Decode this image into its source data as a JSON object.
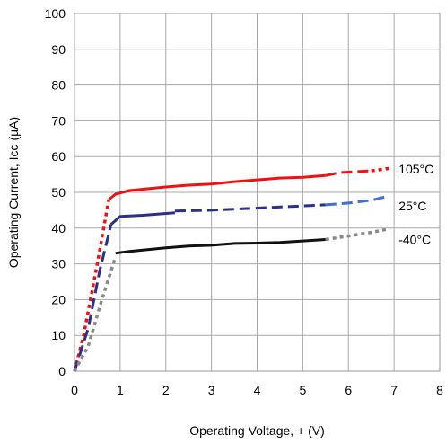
{
  "chart_data": {
    "type": "line",
    "title": "",
    "xlabel": "Operating Voltage, + (V)",
    "ylabel": "Operating Current, Icc (µA)",
    "xlim": [
      0,
      8
    ],
    "ylim": [
      0,
      100
    ],
    "xticks": [
      "0",
      "1",
      "2",
      "3",
      "4",
      "5",
      "6",
      "7",
      "8"
    ],
    "yticks": [
      "0",
      "10",
      "20",
      "30",
      "40",
      "50",
      "60",
      "70",
      "80",
      "90",
      "100"
    ],
    "grid": true,
    "series": [
      {
        "name": "105°C",
        "color": "#ee1111",
        "segments": [
          {
            "style": "dotted",
            "x": [
              0,
              0.2,
              0.5,
              0.75
            ],
            "y": [
              0,
              10,
              30,
              48
            ]
          },
          {
            "style": "solid",
            "x": [
              0.75,
              0.9,
              1.2,
              1.6,
              2.0,
              2.5,
              3.0,
              3.5,
              4.0,
              4.5,
              5.0,
              5.5
            ],
            "y": [
              48,
              49.5,
              50.5,
              51,
              51.5,
              52,
              52.3,
              53,
              53.5,
              54,
              54.2,
              54.7
            ]
          },
          {
            "style": "dashed",
            "x": [
              5.5,
              5.8,
              6.2,
              6.5
            ],
            "y": [
              54.7,
              55.5,
              55.8,
              56
            ]
          },
          {
            "style": "dotted",
            "x": [
              6.5,
              6.9
            ],
            "y": [
              56,
              56.7
            ]
          }
        ]
      },
      {
        "name": "25°C",
        "color": "#2a2f8c",
        "segments": [
          {
            "style": "dashed",
            "x": [
              0,
              0.3,
              0.55,
              0.8
            ],
            "y": [
              0,
              12,
              28,
              41
            ]
          },
          {
            "style": "solid",
            "x": [
              0.8,
              1.0,
              1.5,
              2.2
            ],
            "y": [
              41,
              43.3,
              43.6,
              44.3
            ]
          },
          {
            "style": "dashed",
            "x": [
              2.2,
              3.0,
              4.0,
              5.5
            ],
            "y": [
              44.8,
              45,
              45.6,
              46.5
            ]
          },
          {
            "style": "dashed-light",
            "x": [
              5.5,
              6.0,
              6.5,
              6.9
            ],
            "y": [
              46.5,
              47,
              47.8,
              49
            ]
          }
        ]
      },
      {
        "name": "-40°C",
        "color": "#111111",
        "segments": [
          {
            "style": "dotted-gray",
            "x": [
              0,
              0.3,
              0.6,
              0.9
            ],
            "y": [
              0,
              7,
              20,
              32
            ]
          },
          {
            "style": "solid",
            "x": [
              0.9,
              1.2,
              1.6,
              2.0,
              2.5,
              3.0,
              3.5,
              4.0,
              4.5,
              5.0,
              5.5
            ],
            "y": [
              33,
              33.5,
              34,
              34.5,
              35,
              35.2,
              35.7,
              35.8,
              36,
              36.4,
              36.8
            ]
          },
          {
            "style": "dotted-gray",
            "x": [
              5.5,
              6.0,
              6.5,
              6.9
            ],
            "y": [
              36.8,
              37.8,
              38.8,
              39.8
            ]
          }
        ]
      }
    ],
    "series_labels": [
      "105°C",
      "25°C",
      "-40°C"
    ]
  }
}
